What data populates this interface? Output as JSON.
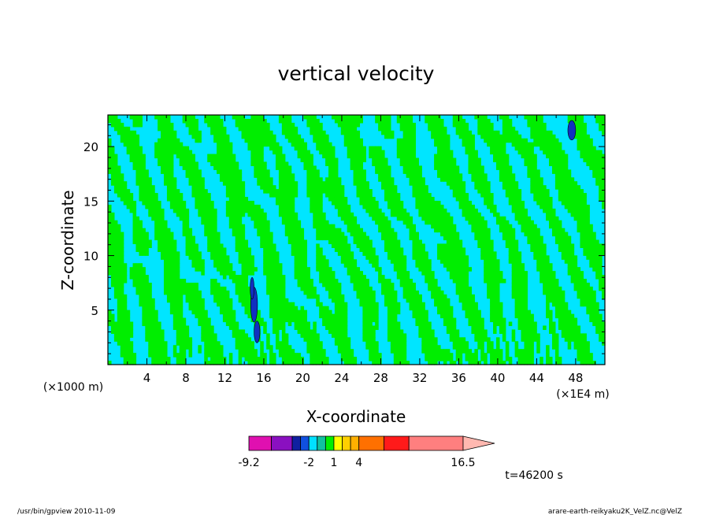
{
  "chart_data": {
    "type": "heatmap",
    "title": "vertical velocity",
    "xlabel": "X-coordinate",
    "ylabel": "Z-coordinate",
    "x_unit_label": "(×1E4 m)",
    "y_unit_label": "(×1000 m)",
    "xlim": [
      0,
      51
    ],
    "ylim": [
      0,
      22.9
    ],
    "x_ticks": [
      "4",
      "8",
      "12",
      "16",
      "20",
      "24",
      "28",
      "32",
      "36",
      "40",
      "44",
      "48"
    ],
    "y_ticks": [
      "5",
      "10",
      "15",
      "20"
    ],
    "time_label": "t=46200 s",
    "colorbar": {
      "tick_labels": [
        "-9.2",
        "-2",
        "1",
        "4",
        "16.5"
      ],
      "tick_values": [
        -9.2,
        -2,
        1,
        4,
        16.5
      ],
      "bins": [
        {
          "from": -9.2,
          "to": -6.5,
          "color": "#e010b0"
        },
        {
          "from": -6.5,
          "to": -4.0,
          "color": "#8a10c0"
        },
        {
          "from": -4.0,
          "to": -3.0,
          "color": "#1020a0"
        },
        {
          "from": -3.0,
          "to": -2.0,
          "color": "#1050e0"
        },
        {
          "from": -2.0,
          "to": -1.0,
          "color": "#00e0ff"
        },
        {
          "from": -1.0,
          "to": 0.0,
          "color": "#10c0a0"
        },
        {
          "from": 0.0,
          "to": 1.0,
          "color": "#00ee00"
        },
        {
          "from": 1.0,
          "to": 2.0,
          "color": "#ffff00"
        },
        {
          "from": 2.0,
          "to": 3.0,
          "color": "#ffd000"
        },
        {
          "from": 3.0,
          "to": 4.0,
          "color": "#ffb000"
        },
        {
          "from": 4.0,
          "to": 7.0,
          "color": "#ff7000"
        },
        {
          "from": 7.0,
          "to": 10.0,
          "color": "#ff1a1a"
        },
        {
          "from": 10.0,
          "to": 16.5,
          "color": "#ff7f7f"
        }
      ],
      "extend_color": "#ffb8b0"
    },
    "dominant_colors": {
      "updraft": "#00ee00",
      "downdraft": "#00e5ff",
      "strong_downdraft": "#1030c0"
    }
  },
  "footer": {
    "left": "/usr/bin/gpview   2010-11-09",
    "right": "arare-earth-reikyaku2K_VelZ.nc@VelZ"
  }
}
